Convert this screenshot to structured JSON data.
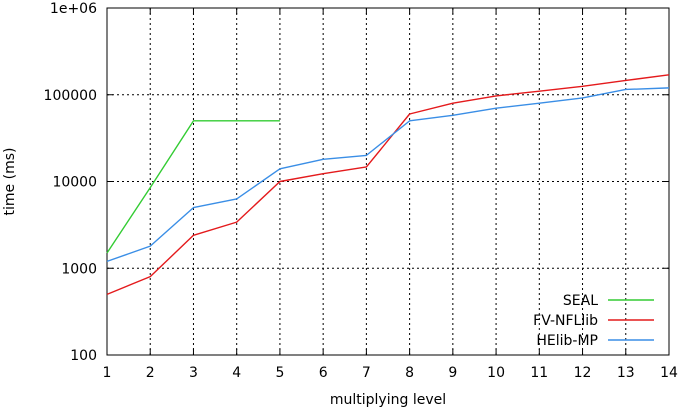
{
  "chart_data": {
    "type": "line",
    "xlabel": "multiplying level",
    "ylabel": "time (ms)",
    "x_ticks": [
      1,
      2,
      3,
      4,
      5,
      6,
      7,
      8,
      9,
      10,
      11,
      12,
      13,
      14
    ],
    "y_ticks": [
      100,
      1000,
      10000,
      100000,
      1000000
    ],
    "y_tick_labels": [
      "100",
      "1000",
      "10000",
      "100000",
      "1e+06"
    ],
    "xlim": [
      1,
      14
    ],
    "ylim": [
      100,
      1000000
    ],
    "y_scale": "log",
    "grid": true,
    "legend_position": "bottom-right",
    "series": [
      {
        "name": "SEAL",
        "color": "#33cc33",
        "x": [
          1,
          2,
          3,
          4,
          5
        ],
        "y": [
          1500,
          8500,
          50000,
          50000,
          50000
        ]
      },
      {
        "name": "FV-NFLlib",
        "color": "#e41a1c",
        "x": [
          1,
          2,
          3,
          4,
          5,
          6,
          7,
          8,
          9,
          10,
          11,
          12,
          13,
          14
        ],
        "y": [
          500,
          800,
          2400,
          3400,
          10000,
          12300,
          14700,
          60000,
          80000,
          97000,
          110000,
          125000,
          146000,
          170000
        ]
      },
      {
        "name": "HElib-MP",
        "color": "#3a8ee6",
        "x": [
          1,
          2,
          3,
          4,
          5,
          6,
          7,
          8,
          9,
          10,
          11,
          12,
          13,
          14
        ],
        "y": [
          1200,
          1800,
          5000,
          6300,
          14000,
          18000,
          20000,
          50000,
          58000,
          70000,
          80000,
          92000,
          115000,
          120000
        ]
      }
    ]
  }
}
